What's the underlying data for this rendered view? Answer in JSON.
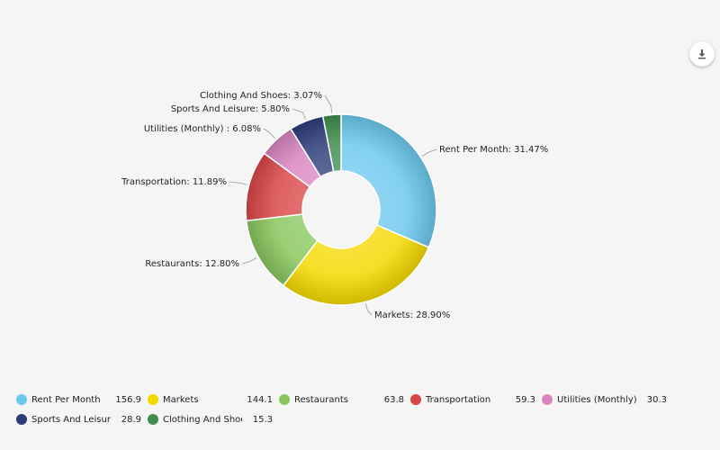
{
  "chart_data": {
    "type": "pie",
    "variant": "donut",
    "categories": [
      "Rent Per Month",
      "Markets",
      "Restaurants",
      "Transportation",
      "Utilities (Monthly)",
      "Sports And Leisure",
      "Clothing And Shoes"
    ],
    "values": [
      156.9,
      144.1,
      63.8,
      59.3,
      30.3,
      28.9,
      15.3
    ],
    "slice_labels": [
      "Rent Per Month: 31.47%",
      "Markets: 28.90%",
      "Restaurants: 12.80%",
      "Transportation: 11.89%",
      "Utilities (Monthly) : 6.08%",
      "Sports And Leisure: 5.80%",
      "Clothing And Shoes: 3.07%"
    ],
    "value_labels": [
      "156.9",
      "144.1",
      "63.8",
      "59.3",
      "30.3",
      "28.9",
      "15.3"
    ],
    "colors": [
      "#6cc8ee",
      "#f5d800",
      "#88c65e",
      "#d94545",
      "#d985c0",
      "#2b3c78",
      "#3e8c4e"
    ],
    "legend_position": "bottom"
  },
  "toolbar": {
    "download_icon": "download-icon"
  }
}
